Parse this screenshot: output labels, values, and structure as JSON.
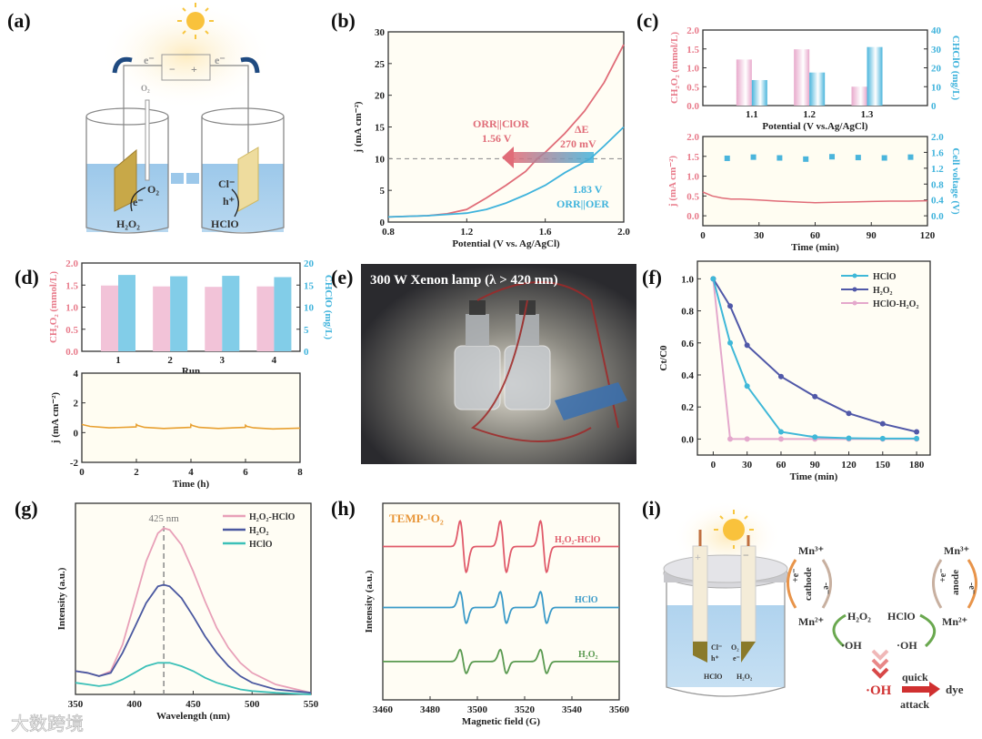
{
  "figure": {
    "panel_labels": [
      "(a)",
      "(b)",
      "(c)",
      "(d)",
      "(e)",
      "(f)",
      "(g)",
      "(h)",
      "(i)"
    ],
    "watermark": "大数跨境"
  },
  "diagram_a": {
    "e_left": "e⁻",
    "e_right": "e⁻",
    "minus": "−",
    "plus": "+",
    "o2_inlet": "O₂",
    "o2": "O₂",
    "e_cathode": "e⁻",
    "h2o2": "H₂O₂",
    "cl": "Cl⁻",
    "h": "h⁺",
    "hclo": "HClO"
  },
  "photo_e": {
    "caption": "300 W Xenon lamp (λ > 420 nm)"
  },
  "diagram_i": {
    "cl": "Cl⁻",
    "h": "h⁺",
    "o2": "O₂",
    "e": "e⁻",
    "hclo_cell": "HClO",
    "h2o2_cell": "H₂O₂",
    "plus": "+",
    "minus": "−",
    "mn3_left": "Mn³⁺",
    "cathode": "cathode",
    "plus_e_left": "+e⁻",
    "minus_e_left": "-e⁻",
    "mn2_left": "Mn²⁺",
    "h2o2": "H₂O₂",
    "hclo": "HClO",
    "oh_left": "·OH",
    "oh_right": "·OH",
    "mn3_right": "Mn³⁺",
    "anode": "anode",
    "plus_e_right": "+e⁻",
    "minus_e_right": "-e⁻",
    "mn2_right": "Mn²⁺",
    "oh_main": "·OH",
    "quick": "quick",
    "attack": "attack",
    "dye": "dye"
  },
  "chart_data": [
    {
      "id": "b",
      "type": "line",
      "xlabel": "Potential (V vs. Ag/AgCl)",
      "ylabel": "j (mA cm⁻²)",
      "xlim": [
        0.8,
        2.0
      ],
      "ylim": [
        0,
        30
      ],
      "xticks": [
        "0.8",
        "1.2",
        "1.6",
        "2.0"
      ],
      "yticks": [
        "0",
        "5",
        "10",
        "15",
        "20",
        "25",
        "30"
      ],
      "reference_line": 10,
      "series": [
        {
          "name": "ORR||ClOR",
          "color": "#e06c78",
          "x": [
            0.8,
            1.0,
            1.1,
            1.2,
            1.3,
            1.4,
            1.5,
            1.56,
            1.6,
            1.7,
            1.8,
            1.9,
            2.0
          ],
          "y": [
            0.8,
            1.0,
            1.3,
            2.0,
            3.8,
            5.8,
            8.0,
            10,
            11,
            14,
            17.5,
            22,
            28
          ]
        },
        {
          "name": "ORR||OER",
          "color": "#3fb3dc",
          "x": [
            0.8,
            1.0,
            1.2,
            1.3,
            1.4,
            1.5,
            1.6,
            1.7,
            1.83,
            1.9,
            2.0
          ],
          "y": [
            0.8,
            1.0,
            1.4,
            2.0,
            3.0,
            4.3,
            5.8,
            7.8,
            10,
            12,
            15
          ]
        }
      ],
      "annotations": {
        "clor_label": "ORR||ClOR",
        "clor_value": "1.56 V",
        "delta_label": "ΔE",
        "delta_value": "270 mV",
        "oer_value": "1.83 V",
        "oer_label": "ORR||OER"
      }
    },
    {
      "id": "c_top",
      "type": "bar",
      "xlabel": "Potential (V vs.Ag/AgCl)",
      "ylabel": "CH₂O₂ (mmol/L)",
      "y2label": "CHClO (mg/L)",
      "categories": [
        "1.1",
        "1.2",
        "1.3"
      ],
      "ylim": [
        0,
        2.0
      ],
      "y2lim": [
        0,
        40
      ],
      "yticks": [
        "0.0",
        "0.5",
        "1.0",
        "1.5",
        "2.0"
      ],
      "y2ticks": [
        "0",
        "10",
        "20",
        "30",
        "40"
      ],
      "series": [
        {
          "name": "H2O2",
          "axis": "left",
          "color": "#e8a9cc",
          "values": [
            1.22,
            1.49,
            0.5
          ]
        },
        {
          "name": "HClO",
          "axis": "right",
          "color": "#4ab5dc",
          "values": [
            13.5,
            17.5,
            31
          ]
        }
      ]
    },
    {
      "id": "c_bottom",
      "type": "line",
      "xlabel": "Time (min)",
      "ylabel": "j (mA cm⁻²)",
      "y2label": "Cell voltage (V)",
      "xlim": [
        0,
        120
      ],
      "ylim": [
        -0.25,
        2.0
      ],
      "y2lim": [
        -0.25,
        2.0
      ],
      "xticks": [
        "0",
        "30",
        "60",
        "90",
        "120"
      ],
      "yticks": [
        "0.0",
        "0.5",
        "1.0",
        "1.5",
        "2.0"
      ],
      "y2ticks": [
        "0.0",
        "0.4",
        "0.8",
        "1.2",
        "1.6",
        "2.0"
      ],
      "series": [
        {
          "name": "j",
          "axis": "left",
          "color": "#e06c78",
          "x": [
            0,
            2,
            5,
            10,
            15,
            20,
            30,
            40,
            50,
            60,
            70,
            80,
            90,
            100,
            110,
            120
          ],
          "y": [
            0.6,
            0.56,
            0.5,
            0.45,
            0.42,
            0.42,
            0.4,
            0.37,
            0.35,
            0.33,
            0.34,
            0.35,
            0.36,
            0.37,
            0.37,
            0.38
          ]
        },
        {
          "name": "Cell voltage",
          "axis": "right",
          "style": "scatter",
          "color": "#4ab5dc",
          "x": [
            13,
            27,
            41,
            55,
            69,
            83,
            97,
            111
          ],
          "y": [
            1.45,
            1.48,
            1.46,
            1.43,
            1.49,
            1.47,
            1.46,
            1.48
          ]
        }
      ]
    },
    {
      "id": "d_top",
      "type": "bar",
      "xlabel": "Run",
      "ylabel": "CH₂O₂ (mmol/L)",
      "y2label": "CHClO (mg/L)",
      "categories": [
        "1",
        "2",
        "3",
        "4"
      ],
      "ylim": [
        0,
        2.0
      ],
      "y2lim": [
        0,
        20
      ],
      "yticks": [
        "0.0",
        "0.5",
        "1.0",
        "1.5",
        "2.0"
      ],
      "y2ticks": [
        "0",
        "5",
        "10",
        "15",
        "20"
      ],
      "series": [
        {
          "name": "H2O2",
          "axis": "left",
          "color": "#f2c3d8",
          "values": [
            1.49,
            1.47,
            1.46,
            1.47
          ]
        },
        {
          "name": "HClO",
          "axis": "right",
          "color": "#82cde8",
          "values": [
            17.3,
            17.0,
            17.1,
            16.8
          ]
        }
      ]
    },
    {
      "id": "d_bottom",
      "type": "line",
      "xlabel": "Time (h)",
      "ylabel": "j (mA cm⁻²)",
      "xlim": [
        0,
        8
      ],
      "ylim": [
        -2,
        4
      ],
      "xticks": [
        "0",
        "2",
        "4",
        "6",
        "8"
      ],
      "yticks": [
        "-2",
        "0",
        "2",
        "4"
      ],
      "series": [
        {
          "name": "j",
          "color": "#e8a030",
          "x": [
            0,
            0.3,
            1,
            1.99,
            2.0,
            2.05,
            2.3,
            3,
            3.99,
            4.0,
            4.05,
            4.3,
            5,
            5.99,
            6.0,
            6.05,
            6.3,
            7,
            8
          ],
          "y": [
            0.55,
            0.42,
            0.32,
            0.38,
            0.55,
            0.48,
            0.35,
            0.28,
            0.35,
            0.55,
            0.48,
            0.35,
            0.28,
            0.35,
            0.5,
            0.42,
            0.32,
            0.25,
            0.3
          ]
        }
      ]
    },
    {
      "id": "f",
      "type": "line",
      "xlabel": "Time (min)",
      "ylabel": "Ct/C0",
      "xlim": [
        -14,
        192
      ],
      "ylim": [
        -0.1,
        1.11
      ],
      "xticks": [
        "0",
        "30",
        "60",
        "90",
        "120",
        "150",
        "180"
      ],
      "yticks": [
        "0.0",
        "0.2",
        "0.4",
        "0.6",
        "0.8",
        "1.0"
      ],
      "legend": "top-right",
      "series": [
        {
          "name": "HClO",
          "color": "#3fb8d8",
          "x": [
            0,
            15,
            30,
            60,
            90,
            120,
            150,
            180
          ],
          "y": [
            1.0,
            0.6,
            0.33,
            0.045,
            0.012,
            0.005,
            0.003,
            0.003
          ]
        },
        {
          "name": "H₂O₂",
          "color": "#5058a8",
          "x": [
            0,
            15,
            30,
            60,
            90,
            120,
            150,
            180
          ],
          "y": [
            1.0,
            0.83,
            0.585,
            0.39,
            0.265,
            0.16,
            0.095,
            0.045
          ]
        },
        {
          "name": "HClO-H₂O₂",
          "color": "#e4a8cc",
          "x": [
            0,
            15,
            30,
            60,
            90,
            120,
            150,
            180
          ],
          "y": [
            1.0,
            0,
            0,
            0,
            0,
            0,
            0,
            0
          ]
        }
      ]
    },
    {
      "id": "g",
      "type": "line",
      "xlabel": "Wavelength (nm)",
      "ylabel": "Intensity (a.u.)",
      "xlim": [
        350,
        550
      ],
      "ylim": [
        0,
        1.15
      ],
      "xticks": [
        "350",
        "400",
        "450",
        "500",
        "550"
      ],
      "yticks": [],
      "legend": "top-right",
      "reference_x": 425,
      "annotation": "425 nm",
      "series": [
        {
          "name": "H₂O₂-HClO",
          "color": "#e8a0b8",
          "x": [
            350,
            360,
            370,
            380,
            390,
            400,
            410,
            420,
            425,
            430,
            440,
            450,
            460,
            470,
            480,
            490,
            500,
            520,
            550
          ],
          "y": [
            0.14,
            0.13,
            0.11,
            0.14,
            0.3,
            0.55,
            0.8,
            0.97,
            1.0,
            0.99,
            0.9,
            0.74,
            0.56,
            0.4,
            0.28,
            0.19,
            0.13,
            0.06,
            0.01
          ]
        },
        {
          "name": "H₂O₂",
          "color": "#4a58a0",
          "x": [
            350,
            360,
            370,
            380,
            390,
            400,
            410,
            420,
            425,
            430,
            440,
            450,
            460,
            470,
            480,
            490,
            500,
            520,
            550
          ],
          "y": [
            0.14,
            0.13,
            0.11,
            0.13,
            0.25,
            0.4,
            0.55,
            0.65,
            0.66,
            0.65,
            0.58,
            0.47,
            0.35,
            0.25,
            0.17,
            0.11,
            0.07,
            0.03,
            0.01
          ]
        },
        {
          "name": "HClO",
          "color": "#3cc0b8",
          "x": [
            350,
            360,
            370,
            380,
            390,
            400,
            410,
            420,
            425,
            430,
            440,
            450,
            460,
            470,
            480,
            490,
            500,
            520,
            550
          ],
          "y": [
            0.07,
            0.06,
            0.05,
            0.06,
            0.09,
            0.13,
            0.17,
            0.19,
            0.19,
            0.19,
            0.17,
            0.14,
            0.1,
            0.07,
            0.05,
            0.03,
            0.02,
            0.01,
            0.0
          ]
        }
      ]
    },
    {
      "id": "h",
      "type": "line",
      "xlabel": "Magnetic field (G)",
      "ylabel": "Intensity (a.u.)",
      "title": "TEMP-¹O₂",
      "xlim": [
        3460,
        3560
      ],
      "ylim": [
        0,
        10
      ],
      "xticks": [
        "3460",
        "3480",
        "3500",
        "3520",
        "3540",
        "3560"
      ],
      "yticks": [],
      "peak_centers": [
        3494,
        3511,
        3528
      ],
      "series": [
        {
          "name": "H₂O₂-HClO",
          "color": "#e05a6a",
          "baseline": 7.8,
          "amplitude": 1.3
        },
        {
          "name": "HClO",
          "color": "#3a9ac8",
          "baseline": 4.7,
          "amplitude": 0.8
        },
        {
          "name": "H₂O₂",
          "color": "#5a9a50",
          "baseline": 1.95,
          "amplitude": 0.6
        }
      ]
    }
  ]
}
